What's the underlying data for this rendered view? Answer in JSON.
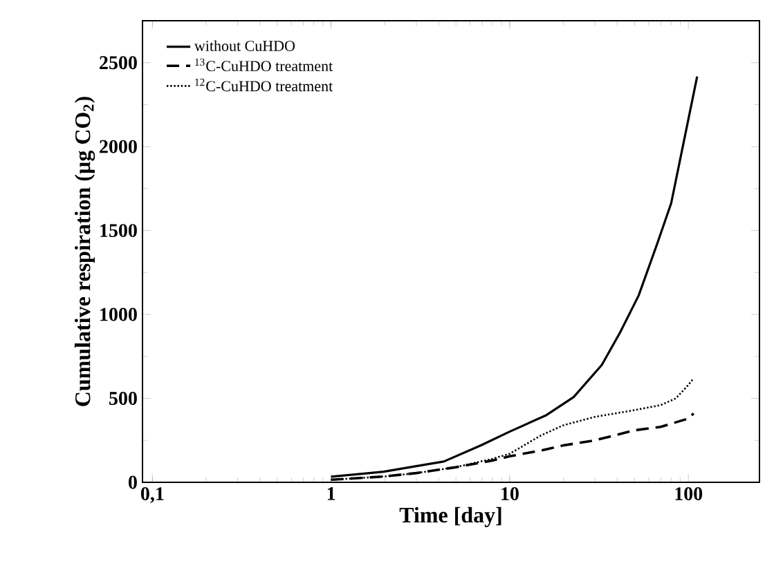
{
  "chart_data": {
    "type": "line",
    "xlabel": "Time [day]",
    "ylabel": "Cumulative respiration (µg CO$_{2}$)",
    "log": "x",
    "xlim": [
      0.088,
      250
    ],
    "ylim": [
      0,
      2750
    ],
    "xticks": [
      {
        "value": 0.1,
        "label": "0,1"
      },
      1,
      10,
      100
    ],
    "yticks": [
      0,
      500,
      1000,
      1500,
      2000,
      2500
    ],
    "legend": "top left",
    "grid": false,
    "marker": "none",
    "series": [
      {
        "name": "without CuHDO",
        "color": "#000000",
        "line_style": "solid",
        "x": [
          1,
          1.97,
          2.99,
          4.28,
          6.9,
          10,
          15.9,
          22.8,
          32.8,
          41.5,
          52.7,
          66.6,
          80.1,
          112
        ],
        "values": [
          33,
          63,
          96,
          124,
          220,
          302,
          398,
          508,
          700,
          893,
          1113,
          1415,
          1662,
          2418
        ]
      },
      {
        "name": "$^{13}$C-CuHDO treatment",
        "color": "#000000",
        "line_style": "dashed",
        "x": [
          1,
          2,
          3,
          5,
          8,
          10,
          15,
          20,
          30,
          50,
          70,
          100,
          107
        ],
        "values": [
          15,
          35,
          55,
          90,
          130,
          155,
          190,
          220,
          250,
          310,
          330,
          380,
          410
        ]
      },
      {
        "name": "$^{12}$C-CuHDO treatment",
        "color": "#000000",
        "line_style": "dotted",
        "x": [
          1,
          2,
          3,
          5,
          8,
          10,
          15,
          20,
          30,
          50,
          70,
          85,
          100,
          107
        ],
        "values": [
          15,
          35,
          55,
          90,
          140,
          170,
          280,
          340,
          390,
          430,
          460,
          500,
          580,
          620
        ]
      }
    ]
  }
}
